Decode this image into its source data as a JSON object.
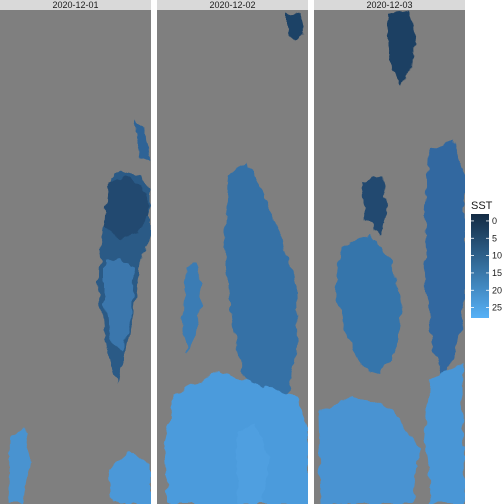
{
  "chart_data": {
    "type": "heatmap",
    "facets": [
      {
        "label": "2020-12-01"
      },
      {
        "label": "2020-12-02"
      },
      {
        "label": "2020-12-03"
      }
    ],
    "legend": {
      "title": "SST",
      "placement": "right",
      "breaks": [
        0,
        5,
        10,
        15,
        20,
        25
      ],
      "range": [
        -2,
        28
      ]
    },
    "colors": {
      "panel_background": "#7f7f7f",
      "strip_background": "#d9d9d9",
      "low": "#132b43",
      "high": "#56b1f7"
    }
  }
}
